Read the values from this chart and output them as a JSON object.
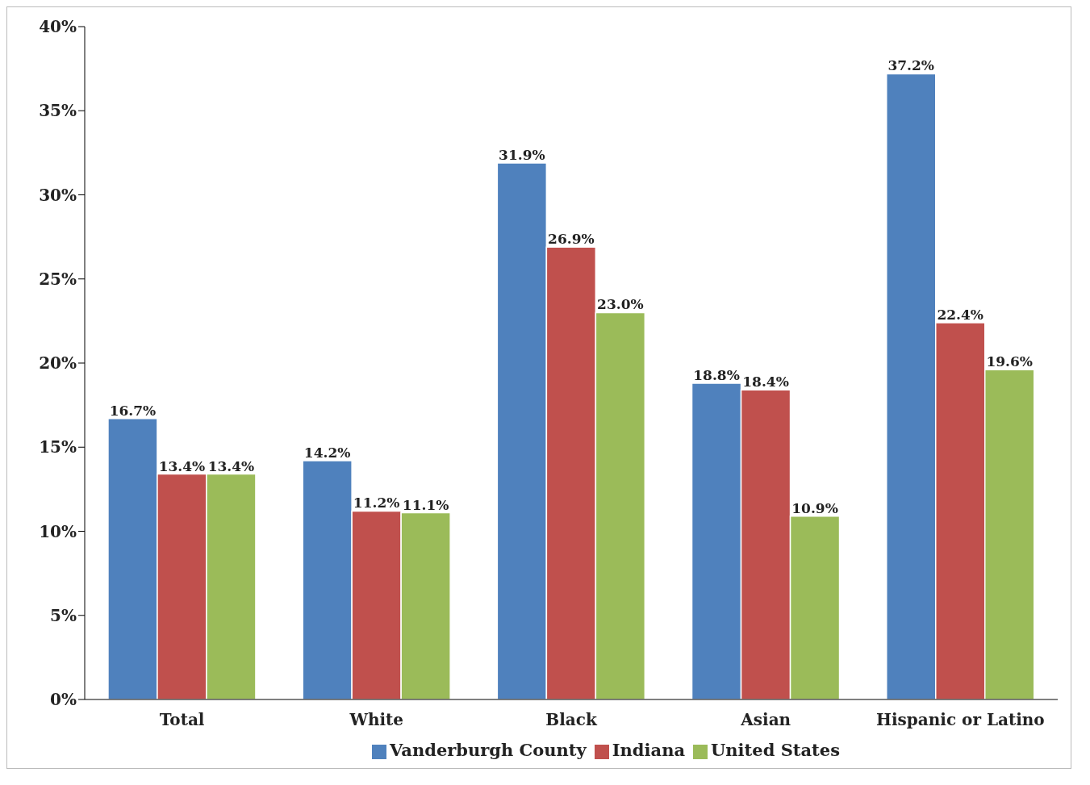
{
  "chart_data": {
    "type": "bar",
    "categories": [
      "Total",
      "White",
      "Black",
      "Asian",
      "Hispanic or Latino"
    ],
    "series": [
      {
        "name": "Vanderburgh County",
        "color": "#4f81bd",
        "values": [
          16.7,
          14.2,
          31.9,
          18.8,
          37.2
        ],
        "value_labels": [
          "16.7%",
          "14.2%",
          "31.9%",
          "18.8%",
          "37.2%"
        ]
      },
      {
        "name": "Indiana",
        "color": "#c0504d",
        "values": [
          13.4,
          11.2,
          26.9,
          18.4,
          22.4
        ],
        "value_labels": [
          "13.4%",
          "11.2%",
          "26.9%",
          "18.4%",
          "22.4%"
        ]
      },
      {
        "name": "United States",
        "color": "#9bbb59",
        "values": [
          13.4,
          11.1,
          23.0,
          10.9,
          19.6
        ],
        "value_labels": [
          "13.4%",
          "11.1%",
          "23.0%",
          "10.9%",
          "19.6%"
        ]
      }
    ],
    "ylim": [
      0,
      40
    ],
    "yticks": [
      {
        "value": 0,
        "label": "0%"
      },
      {
        "value": 5,
        "label": "5%"
      },
      {
        "value": 10,
        "label": "10%"
      },
      {
        "value": 15,
        "label": "15%"
      },
      {
        "value": 20,
        "label": "20%"
      },
      {
        "value": 25,
        "label": "25%"
      },
      {
        "value": 30,
        "label": "30%"
      },
      {
        "value": 35,
        "label": "35%"
      },
      {
        "value": 40,
        "label": "40%"
      }
    ],
    "grid": false,
    "legend": "bottom"
  }
}
